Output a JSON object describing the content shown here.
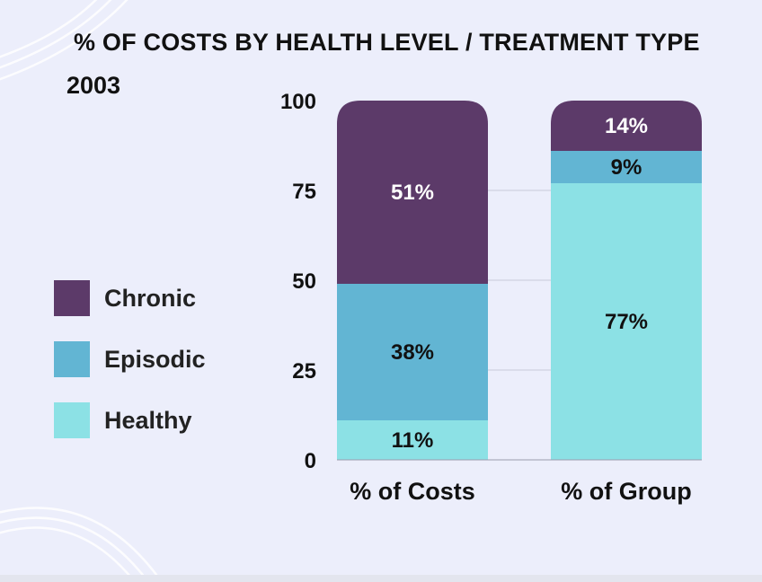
{
  "chart_data": {
    "type": "bar",
    "stacked": true,
    "title": "% OF COSTS BY HEALTH LEVEL / TREATMENT TYPE",
    "subtitle": "2003",
    "categories": [
      "% of Costs",
      "% of Group"
    ],
    "series": [
      {
        "name": "Healthy",
        "color": "#8ce1e5",
        "values": [
          11,
          77
        ],
        "labels": [
          "11%",
          "77%"
        ],
        "label_color": "#111111"
      },
      {
        "name": "Episodic",
        "color": "#62b5d3",
        "values": [
          38,
          9
        ],
        "labels": [
          "38%",
          "9%"
        ],
        "label_color": "#111111"
      },
      {
        "name": "Chronic",
        "color": "#5c3a69",
        "values": [
          51,
          14
        ],
        "labels": [
          "51%",
          "14%"
        ],
        "label_color": "#ffffff"
      }
    ],
    "yticks": [
      0,
      25,
      50,
      75,
      100
    ],
    "ytick_labels": [
      "0",
      "25",
      "50",
      "75",
      "100"
    ],
    "ylim": [
      0,
      100
    ],
    "xlabel": "",
    "ylabel": "",
    "grid": true,
    "legend_position": "left"
  },
  "legend": {
    "items": [
      {
        "label": "Chronic",
        "color": "#5c3a69"
      },
      {
        "label": "Episodic",
        "color": "#62b5d3"
      },
      {
        "label": "Healthy",
        "color": "#8ce1e5"
      }
    ]
  }
}
